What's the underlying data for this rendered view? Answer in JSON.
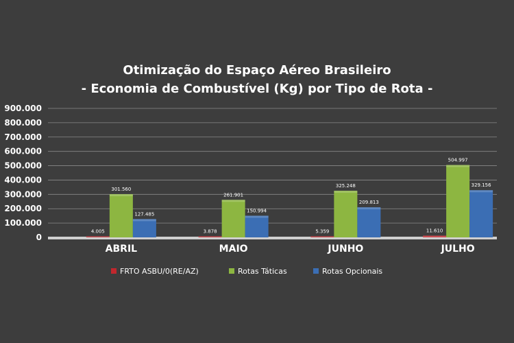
{
  "chart_data": {
    "type": "bar",
    "title": "Otimização do Espaço Aéreo Brasileiro",
    "subtitle": "- Economia de Combustível (Kg) por Tipo de Rota -",
    "categories": [
      "ABRIL",
      "MAIO",
      "JUNHO",
      "JULHO"
    ],
    "series": [
      {
        "name": "FRTO ASBU/0(RE/AZ)",
        "color": "#c1272d",
        "values": [
          4005,
          3878,
          5359,
          11610
        ],
        "labels": [
          "4.005",
          "3.878",
          "5.359",
          "11.610"
        ]
      },
      {
        "name": "Rotas Táticas",
        "color": "#8db641",
        "values": [
          301560,
          261901,
          325248,
          504997
        ],
        "labels": [
          "301.560",
          "261.901",
          "325.248",
          "504.997"
        ]
      },
      {
        "name": "Rotas Opcionais",
        "color": "#3b6eb4",
        "values": [
          127485,
          150994,
          209813,
          329156
        ],
        "labels": [
          "127.485",
          "150.994",
          "209.813",
          "329.156"
        ]
      }
    ],
    "ylim": [
      0,
      900000
    ],
    "yticks": [
      {
        "value": 0,
        "label": "0"
      },
      {
        "value": 100000,
        "label": "100.000"
      },
      {
        "value": 200000,
        "label": "200.000"
      },
      {
        "value": 300000,
        "label": "300.000"
      },
      {
        "value": 400000,
        "label": "400.000"
      },
      {
        "value": 500000,
        "label": "500.000"
      },
      {
        "value": 600000,
        "label": "600.000"
      },
      {
        "value": 700000,
        "label": "700.000"
      },
      {
        "value": 800000,
        "label": "800.000"
      },
      {
        "value": 900000,
        "label": "900.000"
      }
    ],
    "grid": true,
    "legend_position": "bottom"
  }
}
